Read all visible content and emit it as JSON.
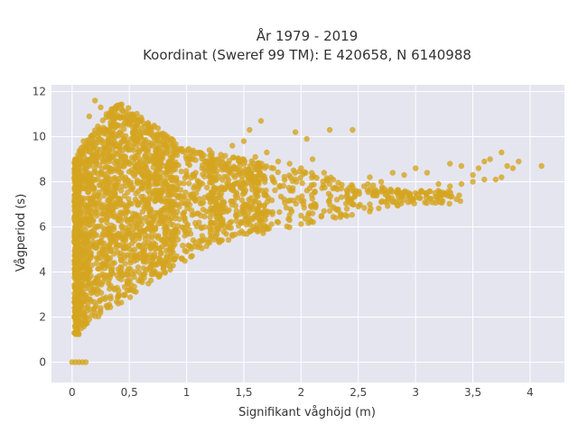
{
  "chart_data": {
    "type": "scatter",
    "title_lines": [
      "År 1979 - 2019",
      "Koordinat (Sweref 99 TM): E 420658, N 6140988"
    ],
    "xlabel": "Signifikant våghöjd (m)",
    "ylabel": "Vågperiod (s)",
    "xlim": [
      -0.18,
      4.3
    ],
    "ylim": [
      -0.9,
      12.3
    ],
    "x_ticks": [
      0,
      0.5,
      1,
      1.5,
      2,
      2.5,
      3,
      3.5,
      4
    ],
    "x_tick_labels": [
      "0",
      "0,5",
      "1",
      "1,5",
      "2",
      "2,5",
      "3",
      "3,5",
      "4"
    ],
    "y_ticks": [
      0,
      2,
      4,
      6,
      8,
      10,
      12
    ],
    "y_tick_labels": [
      "0",
      "2",
      "4",
      "6",
      "8",
      "10",
      "12"
    ],
    "grid": true,
    "plot_background": "#e5e5f0",
    "point_color": "#d4a520",
    "background": "#ffffff",
    "series": [
      {
        "values_description_free": true,
        "points": [
          [
            0.0,
            0.0
          ],
          [
            0.03,
            0.0
          ],
          [
            0.06,
            0.0
          ],
          [
            0.09,
            0.0
          ],
          [
            0.12,
            0.0
          ],
          [
            0.02,
            1.3
          ],
          [
            0.03,
            1.8
          ],
          [
            0.05,
            2.4
          ],
          [
            0.04,
            3.2
          ],
          [
            0.06,
            4.1
          ],
          [
            0.05,
            5.0
          ],
          [
            0.03,
            6.2
          ],
          [
            0.04,
            7.3
          ],
          [
            0.05,
            8.4
          ],
          [
            0.06,
            8.9
          ],
          [
            0.08,
            1.5
          ],
          [
            0.1,
            2.1
          ],
          [
            0.12,
            1.7
          ],
          [
            0.15,
            1.9
          ],
          [
            0.2,
            2.2
          ],
          [
            0.25,
            2.4
          ],
          [
            0.3,
            2.5
          ],
          [
            0.4,
            2.9
          ],
          [
            0.5,
            3.2
          ],
          [
            0.6,
            3.6
          ],
          [
            0.7,
            3.9
          ],
          [
            0.8,
            4.3
          ],
          [
            0.9,
            4.6
          ],
          [
            1.0,
            4.9
          ],
          [
            0.1,
            9.8
          ],
          [
            0.15,
            10.9
          ],
          [
            0.2,
            11.6
          ],
          [
            0.25,
            11.3
          ],
          [
            0.3,
            11.0
          ],
          [
            0.35,
            10.8
          ],
          [
            0.4,
            10.5
          ],
          [
            0.5,
            11.0
          ],
          [
            0.55,
            10.4
          ],
          [
            0.6,
            10.0
          ],
          [
            0.7,
            9.6
          ],
          [
            0.8,
            9.9
          ],
          [
            0.9,
            9.4
          ],
          [
            1.0,
            9.0
          ],
          [
            1.1,
            9.3
          ],
          [
            1.2,
            9.4
          ],
          [
            1.3,
            9.2
          ],
          [
            1.4,
            9.6
          ],
          [
            1.5,
            9.8
          ],
          [
            1.6,
            9.1
          ],
          [
            1.7,
            9.3
          ],
          [
            1.8,
            8.9
          ],
          [
            1.9,
            8.8
          ],
          [
            2.0,
            8.6
          ],
          [
            2.1,
            9.0
          ],
          [
            2.2,
            8.4
          ],
          [
            1.1,
            5.1
          ],
          [
            1.2,
            5.3
          ],
          [
            1.3,
            5.4
          ],
          [
            1.4,
            5.6
          ],
          [
            1.5,
            5.7
          ],
          [
            1.6,
            5.9
          ],
          [
            1.7,
            6.0
          ],
          [
            1.8,
            6.2
          ],
          [
            1.9,
            6.3
          ],
          [
            2.0,
            6.5
          ],
          [
            2.1,
            6.6
          ],
          [
            2.2,
            6.7
          ],
          [
            2.3,
            6.8
          ],
          [
            2.4,
            6.8
          ],
          [
            2.5,
            6.9
          ],
          [
            2.6,
            7.0
          ],
          [
            2.7,
            7.1
          ],
          [
            2.8,
            7.1
          ],
          [
            2.9,
            7.2
          ],
          [
            3.0,
            7.3
          ],
          [
            3.1,
            7.5
          ],
          [
            3.2,
            7.6
          ],
          [
            3.3,
            7.8
          ],
          [
            3.4,
            7.9
          ],
          [
            3.5,
            8.0
          ],
          [
            3.6,
            8.1
          ],
          [
            2.6,
            8.2
          ],
          [
            2.7,
            8.0
          ],
          [
            2.8,
            8.4
          ],
          [
            2.9,
            8.3
          ],
          [
            3.0,
            8.6
          ],
          [
            3.1,
            8.4
          ],
          [
            3.3,
            8.8
          ],
          [
            3.4,
            8.7
          ],
          [
            3.5,
            8.3
          ],
          [
            3.55,
            8.6
          ],
          [
            3.6,
            8.9
          ],
          [
            3.65,
            9.0
          ],
          [
            3.75,
            9.3
          ],
          [
            3.8,
            8.7
          ],
          [
            3.85,
            8.6
          ],
          [
            3.9,
            8.9
          ],
          [
            4.1,
            8.7
          ],
          [
            3.7,
            8.1
          ],
          [
            3.75,
            8.2
          ],
          [
            3.2,
            7.9
          ],
          [
            3.05,
            7.6
          ],
          [
            2.95,
            7.4
          ],
          [
            2.85,
            7.3
          ],
          [
            2.75,
            7.4
          ],
          [
            2.65,
            7.5
          ],
          [
            2.55,
            7.8
          ],
          [
            2.45,
            7.6
          ],
          [
            2.35,
            7.7
          ],
          [
            2.45,
            10.3
          ],
          [
            2.25,
            10.3
          ],
          [
            2.05,
            9.9
          ],
          [
            1.95,
            10.2
          ],
          [
            1.65,
            10.7
          ],
          [
            1.55,
            10.3
          ]
        ]
      }
    ]
  }
}
